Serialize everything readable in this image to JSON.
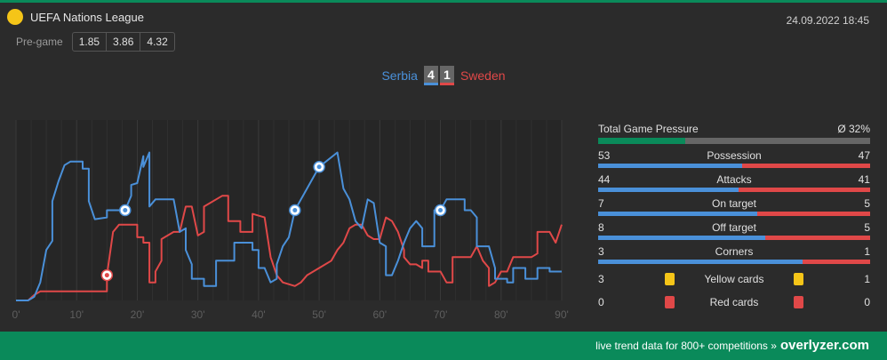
{
  "header": {
    "league": "UEFA Nations League",
    "datetime": "24.09.2022 18:45",
    "pregame_label": "Pre-game",
    "odds": [
      "1.85",
      "3.86",
      "4.32"
    ]
  },
  "match": {
    "home_team": "Serbia",
    "away_team": "Sweden",
    "home_score": "4",
    "away_score": "1"
  },
  "colors": {
    "home": "#4a90d9",
    "away": "#e04848",
    "brand": "#0a8a5a",
    "yellow": "#f5c518"
  },
  "chart_data": {
    "type": "line",
    "x_tick_labels": [
      "0'",
      "10'",
      "20'",
      "30'",
      "40'",
      "50'",
      "60'",
      "70'",
      "80'",
      "90'"
    ],
    "xlim": [
      0,
      90
    ],
    "ylim": [
      0,
      100
    ],
    "series": [
      {
        "name": "Serbia",
        "color": "#4a90d9",
        "points": [
          [
            0,
            0
          ],
          [
            2,
            0
          ],
          [
            3,
            2
          ],
          [
            4,
            10
          ],
          [
            5,
            28
          ],
          [
            6,
            33
          ],
          [
            6,
            55
          ],
          [
            7,
            66
          ],
          [
            8,
            75
          ],
          [
            9,
            77
          ],
          [
            11,
            77
          ],
          [
            11,
            73
          ],
          [
            12,
            73
          ],
          [
            12,
            55
          ],
          [
            13,
            45
          ],
          [
            15,
            46
          ],
          [
            15,
            50
          ],
          [
            18,
            50
          ],
          [
            19,
            58
          ],
          [
            19,
            64
          ],
          [
            20,
            65
          ],
          [
            21,
            80
          ],
          [
            21,
            74
          ],
          [
            22,
            82
          ],
          [
            22,
            52
          ],
          [
            23,
            56
          ],
          [
            26,
            56
          ],
          [
            27,
            38
          ],
          [
            28,
            40
          ],
          [
            28,
            28
          ],
          [
            29,
            20
          ],
          [
            29,
            12
          ],
          [
            31,
            12
          ],
          [
            31,
            8
          ],
          [
            33,
            8
          ],
          [
            33,
            22
          ],
          [
            36,
            22
          ],
          [
            36,
            32
          ],
          [
            39,
            32
          ],
          [
            39,
            28
          ],
          [
            40,
            28
          ],
          [
            40,
            18
          ],
          [
            41,
            18
          ],
          [
            42,
            10
          ],
          [
            43,
            12
          ],
          [
            43,
            20
          ],
          [
            44,
            30
          ],
          [
            45,
            35
          ],
          [
            46,
            50
          ],
          [
            50,
            74
          ],
          [
            53,
            82
          ],
          [
            54,
            62
          ],
          [
            55,
            56
          ],
          [
            56,
            44
          ],
          [
            57,
            40
          ],
          [
            58,
            56
          ],
          [
            59,
            54
          ],
          [
            60,
            32
          ],
          [
            61,
            30
          ],
          [
            61,
            14
          ],
          [
            62,
            14
          ],
          [
            63,
            22
          ],
          [
            64,
            32
          ],
          [
            65,
            40
          ],
          [
            66,
            44
          ],
          [
            67,
            40
          ],
          [
            67,
            30
          ],
          [
            69,
            30
          ],
          [
            69,
            50
          ],
          [
            70,
            50
          ],
          [
            71,
            56
          ],
          [
            74,
            56
          ],
          [
            74,
            50
          ],
          [
            75,
            50
          ],
          [
            76,
            46
          ],
          [
            76,
            30
          ],
          [
            78,
            30
          ],
          [
            79,
            18
          ],
          [
            79,
            12
          ],
          [
            81,
            12
          ],
          [
            81,
            10
          ],
          [
            82,
            10
          ],
          [
            82,
            18
          ],
          [
            84,
            18
          ],
          [
            84,
            12
          ],
          [
            86,
            12
          ],
          [
            86,
            18
          ],
          [
            88,
            18
          ],
          [
            88,
            16
          ],
          [
            90,
            16
          ]
        ]
      },
      {
        "name": "Sweden",
        "color": "#e04848",
        "points": [
          [
            0,
            0
          ],
          [
            2,
            0
          ],
          [
            3,
            3
          ],
          [
            4,
            5
          ],
          [
            11,
            5
          ],
          [
            12,
            5
          ],
          [
            15,
            5
          ],
          [
            15,
            14
          ],
          [
            16,
            38
          ],
          [
            17,
            42
          ],
          [
            20,
            42
          ],
          [
            20,
            35
          ],
          [
            21,
            35
          ],
          [
            21,
            32
          ],
          [
            22,
            32
          ],
          [
            22,
            10
          ],
          [
            23,
            10
          ],
          [
            23,
            16
          ],
          [
            24,
            22
          ],
          [
            24,
            34
          ],
          [
            26,
            38
          ],
          [
            27,
            38
          ],
          [
            28,
            52
          ],
          [
            29,
            52
          ],
          [
            30,
            36
          ],
          [
            31,
            38
          ],
          [
            31,
            52
          ],
          [
            34,
            58
          ],
          [
            35,
            58
          ],
          [
            35,
            44
          ],
          [
            37,
            44
          ],
          [
            37,
            38
          ],
          [
            39,
            38
          ],
          [
            39,
            48
          ],
          [
            41,
            46
          ],
          [
            42,
            24
          ],
          [
            43,
            14
          ],
          [
            44,
            10
          ],
          [
            46,
            8
          ],
          [
            47,
            10
          ],
          [
            48,
            14
          ],
          [
            50,
            18
          ],
          [
            52,
            22
          ],
          [
            53,
            28
          ],
          [
            54,
            32
          ],
          [
            55,
            40
          ],
          [
            56,
            42
          ],
          [
            57,
            42
          ],
          [
            58,
            36
          ],
          [
            59,
            34
          ],
          [
            60,
            34
          ],
          [
            61,
            46
          ],
          [
            62,
            44
          ],
          [
            63,
            38
          ],
          [
            64,
            28
          ],
          [
            64,
            24
          ],
          [
            65,
            20
          ],
          [
            66,
            20
          ],
          [
            67,
            18
          ],
          [
            67,
            22
          ],
          [
            68,
            22
          ],
          [
            68,
            16
          ],
          [
            70,
            16
          ],
          [
            71,
            10
          ],
          [
            72,
            10
          ],
          [
            72,
            24
          ],
          [
            75,
            24
          ],
          [
            76,
            30
          ],
          [
            77,
            22
          ],
          [
            78,
            18
          ],
          [
            78,
            8
          ],
          [
            79,
            10
          ],
          [
            80,
            16
          ],
          [
            81,
            16
          ],
          [
            82,
            24
          ],
          [
            85,
            24
          ],
          [
            86,
            26
          ],
          [
            86,
            38
          ],
          [
            88,
            38
          ],
          [
            89,
            32
          ],
          [
            90,
            42
          ]
        ]
      }
    ],
    "goals": [
      {
        "team": "Sweden",
        "minute": 15
      },
      {
        "team": "Serbia",
        "minute": 18
      },
      {
        "team": "Serbia",
        "minute": 46
      },
      {
        "team": "Serbia",
        "minute": 50
      },
      {
        "team": "Serbia",
        "minute": 70
      }
    ]
  },
  "stats": {
    "pressure_label": "Total Game Pressure",
    "pressure_avg": "Ø 32%",
    "pressure_pct": 32,
    "rows": [
      {
        "label": "Possession",
        "home": "53",
        "away": "47",
        "home_n": 53,
        "away_n": 47
      },
      {
        "label": "Attacks",
        "home": "44",
        "away": "41",
        "home_n": 44,
        "away_n": 41
      },
      {
        "label": "On target",
        "home": "7",
        "away": "5",
        "home_n": 7,
        "away_n": 5
      },
      {
        "label": "Off target",
        "home": "8",
        "away": "5",
        "home_n": 8,
        "away_n": 5
      },
      {
        "label": "Corners",
        "home": "3",
        "away": "1",
        "home_n": 3,
        "away_n": 1
      }
    ],
    "yellow": {
      "label": "Yellow cards",
      "home": "3",
      "away": "1"
    },
    "red": {
      "label": "Red cards",
      "home": "0",
      "away": "0"
    }
  },
  "footer": {
    "text": "live trend data for 800+ competitions »",
    "brand": "overlyzer.com"
  }
}
